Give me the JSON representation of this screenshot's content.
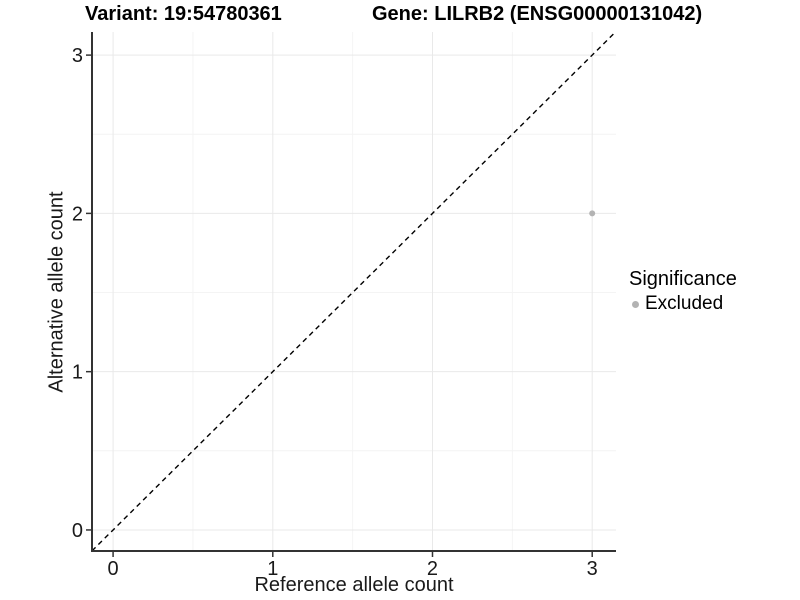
{
  "chart_data": {
    "type": "scatter",
    "titles": [
      "Variant: 19:54780361",
      "Gene: LILRB2 (ENSG00000131042)"
    ],
    "xlabel": "Reference allele count",
    "ylabel": "Alternative allele count",
    "x_ticks": [
      0,
      1,
      2,
      3
    ],
    "y_ticks": [
      0,
      1,
      2,
      3
    ],
    "x_minor": [
      0.5,
      1.5,
      2.5
    ],
    "y_minor": [
      0.5,
      1.5,
      2.5
    ],
    "xlim": [
      -0.132,
      3.149
    ],
    "ylim": [
      -0.133,
      3.146
    ],
    "grid": "major and minor gridlines on, white background",
    "points": [
      {
        "x": 3,
        "y": 2,
        "series": "Excluded"
      }
    ],
    "reference_line": {
      "type": "identity y=x",
      "style": "dashed",
      "color": "#000000",
      "from": [
        -0.132,
        -0.132
      ],
      "to": [
        3.146,
        3.146
      ]
    },
    "legend": {
      "title": "Significance",
      "position": "right",
      "items": [
        {
          "label": "Excluded",
          "color": "#b3b3b3",
          "marker": "circle"
        }
      ]
    },
    "colors": {
      "grid_major": "#e9e9e9",
      "grid_minor": "#f4f4f4",
      "axis_line": "#333333",
      "tick_mark": "#333333",
      "tick_label": "#1a1a1a",
      "point": "#b3b3b3",
      "background": "#ffffff"
    }
  }
}
